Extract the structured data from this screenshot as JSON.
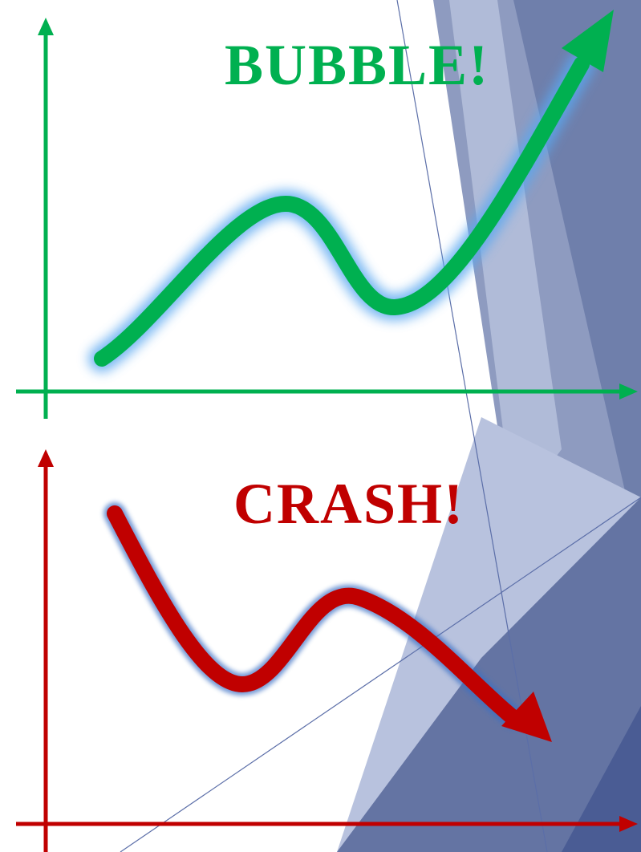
{
  "top": {
    "title": "BUBBLE!"
  },
  "bottom": {
    "title": "CRASH!"
  }
}
